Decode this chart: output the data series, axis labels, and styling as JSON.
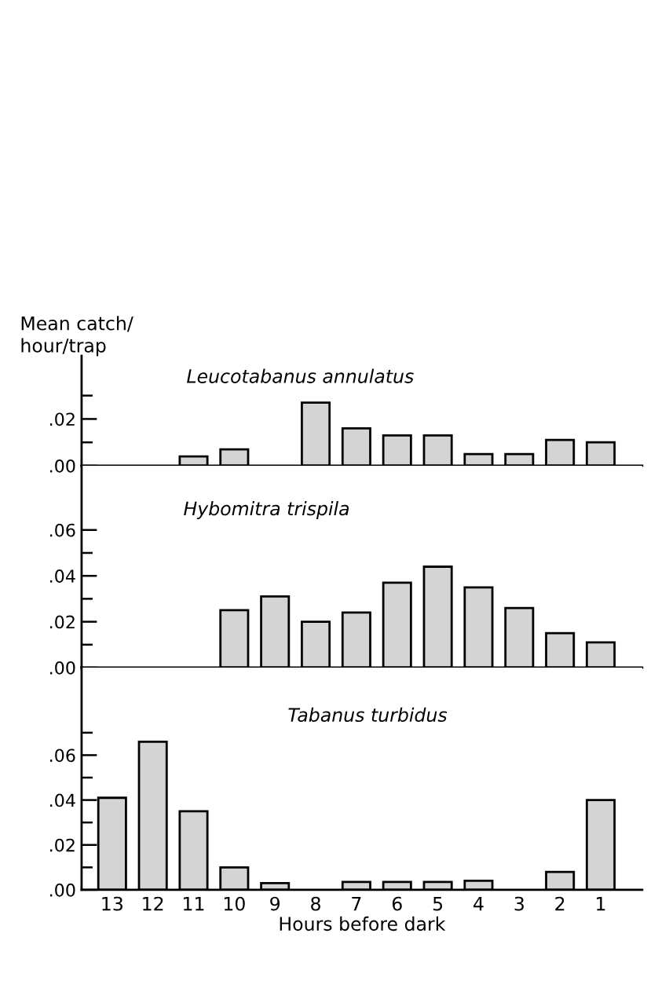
{
  "chart_data": [
    {
      "type": "bar",
      "title": "Leucotabanus annulatus",
      "ylabel": "Mean catch/\nhour/trap",
      "categories": [
        "13",
        "12",
        "11",
        "10",
        "9",
        "8",
        "7",
        "6",
        "5",
        "4",
        "3",
        "2",
        "1"
      ],
      "values": [
        null,
        null,
        0.004,
        0.007,
        null,
        0.027,
        0.016,
        0.013,
        0.013,
        0.005,
        0.005,
        0.011,
        0.01
      ],
      "color": "#d4d4d4",
      "ylim": [
        0,
        0.047
      ],
      "yticks": [
        {
          "value": 0,
          "label": ".00"
        },
        {
          "value": 0.01,
          "label": null
        },
        {
          "value": 0.02,
          "label": ".02"
        },
        {
          "value": 0.03,
          "label": null
        }
      ],
      "tick_labels": "y",
      "grid": false,
      "legend": false
    },
    {
      "type": "bar",
      "title": "Hybomitra trispila",
      "categories": [
        "13",
        "12",
        "11",
        "10",
        "9",
        "8",
        "7",
        "6",
        "5",
        "4",
        "3",
        "2",
        "1"
      ],
      "values": [
        null,
        null,
        null,
        0.025,
        0.031,
        0.02,
        0.024,
        0.037,
        0.044,
        0.035,
        0.026,
        0.015,
        0.011
      ],
      "color": "#d4d4d4",
      "ylim": [
        0,
        0.088
      ],
      "yticks": [
        {
          "value": 0,
          "label": ".00"
        },
        {
          "value": 0.01,
          "label": null
        },
        {
          "value": 0.02,
          "label": ".02"
        },
        {
          "value": 0.03,
          "label": null
        },
        {
          "value": 0.04,
          "label": ".04"
        },
        {
          "value": 0.05,
          "label": null
        },
        {
          "value": 0.06,
          "label": ".06"
        }
      ],
      "tick_labels": "y",
      "grid": false,
      "legend": false
    },
    {
      "type": "bar",
      "title": "Tabanus turbidus",
      "xlabel": "Hours before dark",
      "categories": [
        "13",
        "12",
        "11",
        "10",
        "9",
        "8",
        "7",
        "6",
        "5",
        "4",
        "3",
        "2",
        "1"
      ],
      "values": [
        0.041,
        0.066,
        0.035,
        0.01,
        0.003,
        null,
        0.0035,
        0.0035,
        0.0035,
        0.004,
        null,
        0.008,
        0.04
      ],
      "color": "#d4d4d4",
      "ylim": [
        0,
        0.099
      ],
      "yticks": [
        {
          "value": 0,
          "label": ".00"
        },
        {
          "value": 0.01,
          "label": null
        },
        {
          "value": 0.02,
          "label": ".02"
        },
        {
          "value": 0.03,
          "label": null
        },
        {
          "value": 0.04,
          "label": ".04"
        },
        {
          "value": 0.05,
          "label": null
        },
        {
          "value": 0.06,
          "label": ".06"
        },
        {
          "value": 0.07,
          "label": null
        }
      ],
      "grid": false,
      "legend": false
    }
  ]
}
